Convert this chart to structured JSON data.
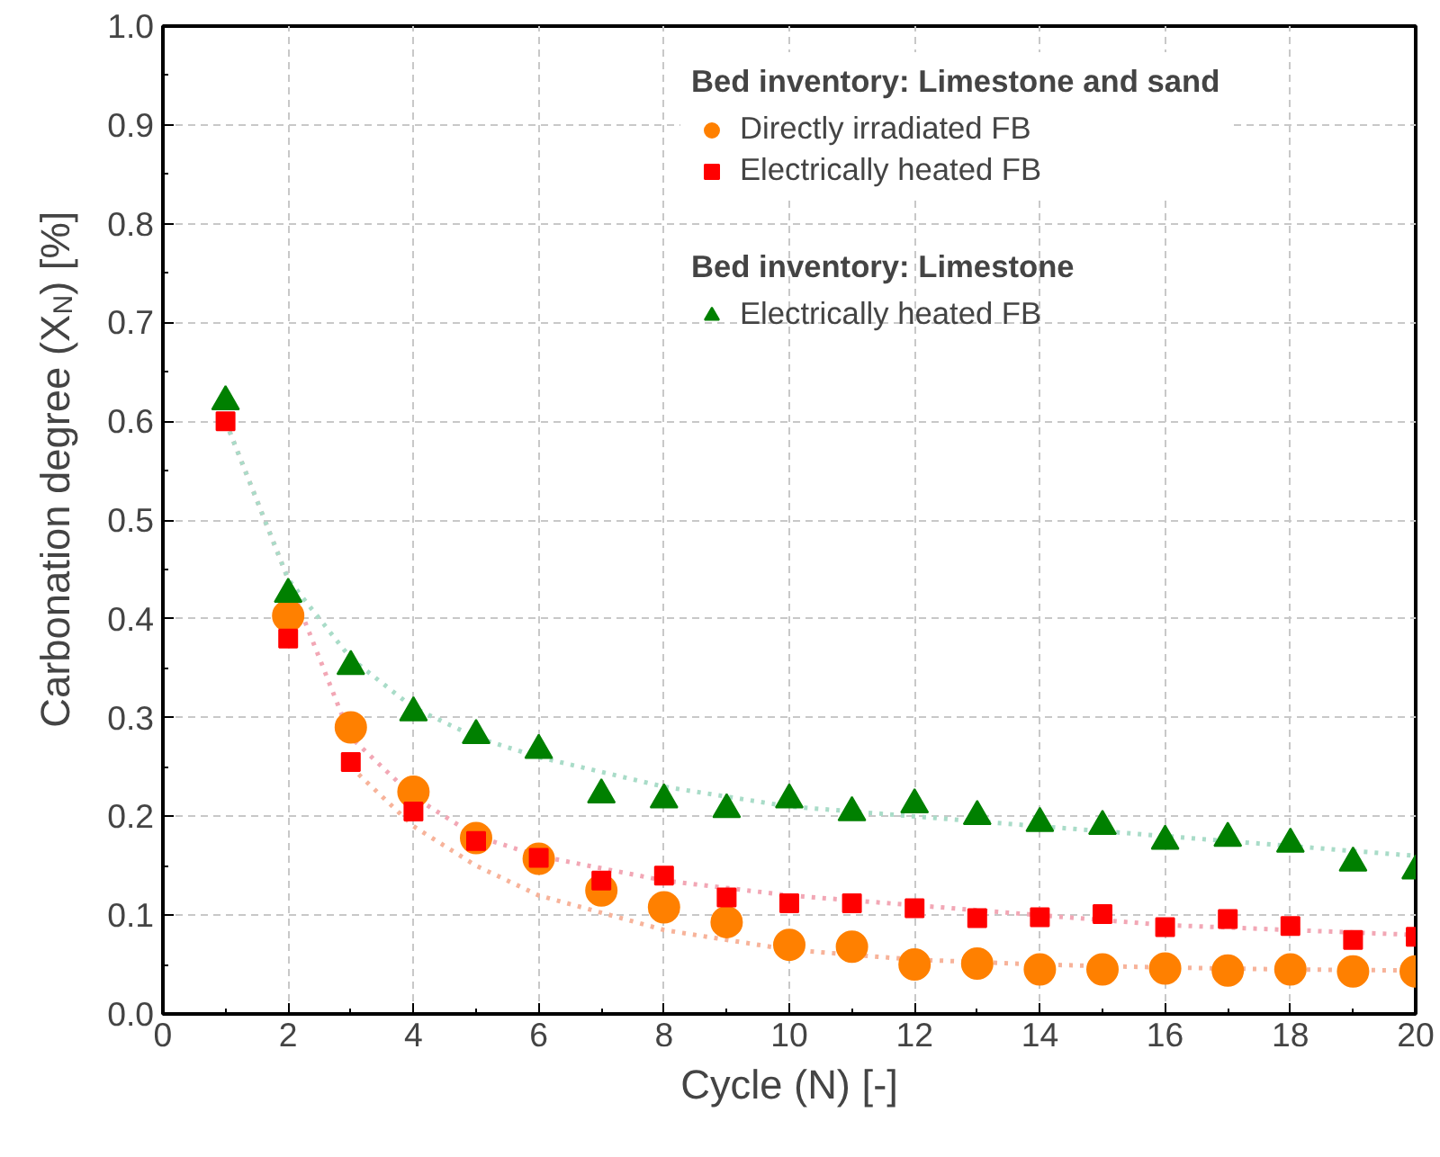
{
  "chart_data": {
    "type": "scatter",
    "xlabel": "Cycle (N) [-]",
    "ylabel": "Carbonation degree (X$_{N}$) [%]",
    "xlim": [
      0,
      20
    ],
    "xticks": [
      0,
      2,
      4,
      6,
      8,
      10,
      12,
      14,
      16,
      18,
      20
    ],
    "ylim": [
      0,
      1
    ],
    "yticks": [
      {
        "value": 0,
        "label": "0.0"
      },
      0.1,
      0.2,
      0.3,
      0.4,
      0.5,
      0.6,
      0.7,
      0.8,
      0.9,
      {
        "value": 1,
        "label": "1.0"
      }
    ],
    "grid": true,
    "legend": "top right",
    "legend_title": "Bed inventory: Limestone and sand",
    "annotations": [
      "Bed inventory: Limestone"
    ],
    "x": [
      1,
      2,
      3,
      4,
      5,
      6,
      7,
      8,
      9,
      10,
      11,
      12,
      13,
      14,
      15,
      16,
      17,
      18,
      19,
      20
    ],
    "series": [
      {
        "type": "line",
        "color": "#f7b39a",
        "marker": "none",
        "line_style": "dotted",
        "x": [
          3,
          4,
          5,
          6,
          8,
          10,
          12,
          14,
          16,
          18,
          20
        ],
        "values": [
          0.25,
          0.19,
          0.15,
          0.12,
          0.085,
          0.065,
          0.055,
          0.05,
          0.047,
          0.045,
          0.044
        ]
      },
      {
        "type": "line",
        "color": "#f2a7b5",
        "marker": "none",
        "line_style": "dotted",
        "x": [
          1,
          3,
          4,
          5,
          6,
          8,
          10,
          12,
          14,
          16,
          18,
          20
        ],
        "values": [
          0.6,
          0.28,
          0.22,
          0.18,
          0.16,
          0.135,
          0.12,
          0.11,
          0.1,
          0.09,
          0.085,
          0.08
        ]
      },
      {
        "type": "line",
        "color": "#a9dcc8",
        "marker": "none",
        "line_style": "dotted",
        "x": [
          1,
          2,
          3,
          4,
          5,
          6,
          8,
          10,
          12,
          14,
          16,
          18,
          20
        ],
        "values": [
          0.6,
          0.44,
          0.36,
          0.31,
          0.28,
          0.26,
          0.23,
          0.21,
          0.2,
          0.19,
          0.18,
          0.17,
          0.16
        ]
      },
      {
        "name": "Directly irradiated FB",
        "color": "#ff8000",
        "marker": "circle",
        "values": [
          null,
          0.403,
          0.29,
          0.225,
          0.178,
          0.157,
          0.125,
          0.108,
          0.093,
          0.07,
          0.068,
          0.05,
          0.051,
          0.045,
          0.045,
          0.046,
          0.044,
          0.045,
          0.043,
          0.043
        ]
      },
      {
        "name": "Electrically heated FB",
        "color": "#ff0000",
        "marker": "square",
        "values": [
          0.6,
          0.38,
          0.255,
          0.205,
          0.175,
          0.158,
          0.135,
          0.14,
          0.118,
          0.112,
          0.112,
          0.107,
          0.097,
          0.098,
          0.101,
          0.088,
          0.096,
          0.089,
          0.075,
          0.078
        ]
      },
      {
        "name": "Electrically heated FB",
        "color": "#008000",
        "marker": "triangle",
        "values": [
          0.62,
          0.425,
          0.352,
          0.305,
          0.282,
          0.267,
          0.222,
          0.217,
          0.207,
          0.217,
          0.204,
          0.212,
          0.2,
          0.193,
          0.19,
          0.175,
          0.178,
          0.172,
          0.153,
          0.145
        ]
      }
    ]
  }
}
